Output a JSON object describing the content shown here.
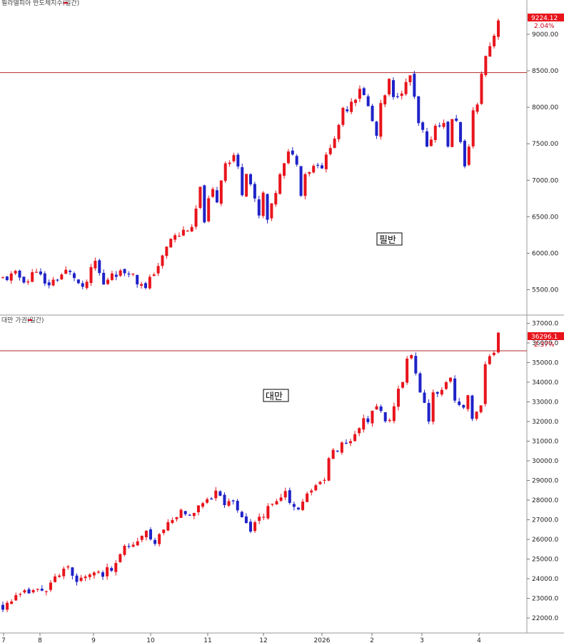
{
  "chart_data": [
    {
      "type": "candlestick",
      "legend": "필라델피아 반도체지수(일간)",
      "annotation": "필반",
      "yticks": [
        5500,
        6000,
        6500,
        7000,
        7500,
        8000,
        8500,
        9000
      ],
      "ytick_labels": [
        "5500.00",
        "6000.00",
        "6500.00",
        "7000.00",
        "7500.00",
        "8000.00",
        "8500.00",
        "9000.00"
      ],
      "ylim": [
        5220,
        9480
      ],
      "last_value": "9224.12",
      "last_change": "2.04%",
      "reference_line": 8475,
      "up_color": "#e8141c",
      "down_color": "#1f22c8",
      "close_path": [
        [
          0,
          5650
        ],
        [
          3,
          5700
        ],
        [
          6,
          5620
        ],
        [
          8,
          5800
        ],
        [
          10,
          5550
        ],
        [
          12,
          5620
        ],
        [
          15,
          5750
        ],
        [
          17,
          5680
        ],
        [
          19,
          5480
        ],
        [
          22,
          5880
        ],
        [
          24,
          5560
        ],
        [
          26,
          5750
        ],
        [
          28,
          5720
        ],
        [
          30,
          5780
        ],
        [
          32,
          5600
        ],
        [
          33,
          5620
        ],
        [
          34,
          5500
        ],
        [
          36,
          5750
        ],
        [
          38,
          5930
        ],
        [
          40,
          6200
        ],
        [
          42,
          6250
        ],
        [
          44,
          6350
        ],
        [
          45,
          6300
        ],
        [
          46,
          6600
        ],
        [
          47,
          6850
        ],
        [
          48,
          6480
        ],
        [
          49,
          6700
        ],
        [
          50,
          6850
        ],
        [
          51,
          6720
        ],
        [
          52,
          7020
        ],
        [
          53,
          7280
        ],
        [
          54,
          7250
        ],
        [
          55,
          7350
        ],
        [
          56,
          7150
        ],
        [
          57,
          6850
        ],
        [
          58,
          7150
        ],
        [
          59,
          6950
        ],
        [
          60,
          6700
        ],
        [
          61,
          6500
        ],
        [
          62,
          6800
        ],
        [
          63,
          6450
        ],
        [
          64,
          6620
        ],
        [
          65,
          6850
        ],
        [
          66,
          7050
        ],
        [
          67,
          7200
        ],
        [
          68,
          7350
        ],
        [
          69,
          7400
        ],
        [
          70,
          7200
        ],
        [
          71,
          6850
        ],
        [
          72,
          7100
        ],
        [
          73,
          7150
        ],
        [
          74,
          7200
        ],
        [
          75,
          7250
        ],
        [
          76,
          7200
        ],
        [
          77,
          7300
        ],
        [
          78,
          7500
        ],
        [
          79,
          7600
        ],
        [
          80,
          7700
        ],
        [
          81,
          7950
        ],
        [
          82,
          8000
        ],
        [
          83,
          8100
        ],
        [
          84,
          8150
        ],
        [
          85,
          8280
        ],
        [
          86,
          8150
        ],
        [
          87,
          8000
        ],
        [
          88,
          7800
        ],
        [
          89,
          7600
        ],
        [
          90,
          8000
        ],
        [
          91,
          8150
        ],
        [
          92,
          8350
        ],
        [
          93,
          8100
        ],
        [
          94,
          8200
        ],
        [
          95,
          8250
        ],
        [
          96,
          8300
        ],
        [
          97,
          8430
        ],
        [
          98,
          8100
        ],
        [
          99,
          7750
        ],
        [
          100,
          7650
        ],
        [
          101,
          7400
        ],
        [
          102,
          7600
        ],
        [
          103,
          7750
        ],
        [
          104,
          7800
        ],
        [
          105,
          7750
        ],
        [
          106,
          7500
        ],
        [
          107,
          7800
        ],
        [
          108,
          7850
        ],
        [
          109,
          7500
        ],
        [
          110,
          7150
        ],
        [
          111,
          7500
        ],
        [
          112,
          7950
        ],
        [
          113,
          8000
        ],
        [
          114,
          8480
        ],
        [
          115,
          8700
        ],
        [
          116,
          8850
        ],
        [
          117,
          9000
        ],
        [
          118,
          9224
        ]
      ]
    },
    {
      "type": "candlestick",
      "legend": "대만 가권(일간)",
      "annotation": "대만",
      "yticks": [
        22000,
        23000,
        24000,
        25000,
        26000,
        27000,
        28000,
        29000,
        30000,
        31000,
        32000,
        33000,
        34000,
        35000,
        36000,
        37000
      ],
      "ytick_labels": [
        "22000.0",
        "23000.0",
        "24000.0",
        "25000.0",
        "26000.0",
        "27000.0",
        "28000.0",
        "29000.0",
        "30000.0",
        "31000.0",
        "32000.0",
        "33000.0",
        "34000.0",
        "35000.0",
        "36000.0",
        "37000.0"
      ],
      "ylim": [
        21300,
        37280
      ],
      "last_value": "36296.1",
      "last_change": "2.37%",
      "reference_line": 35600,
      "up_color": "#e8141c",
      "down_color": "#1f22c8",
      "close_path": [
        [
          0,
          22600
        ],
        [
          3,
          23000
        ],
        [
          6,
          23300
        ],
        [
          9,
          23400
        ],
        [
          11,
          23800
        ],
        [
          13,
          24200
        ],
        [
          15,
          24450
        ],
        [
          17,
          23800
        ],
        [
          19,
          24300
        ],
        [
          21,
          24400
        ],
        [
          23,
          24100
        ],
        [
          25,
          24600
        ],
        [
          27,
          25400
        ],
        [
          29,
          25600
        ],
        [
          31,
          25800
        ],
        [
          33,
          26300
        ],
        [
          35,
          25900
        ],
        [
          37,
          26600
        ],
        [
          39,
          27000
        ],
        [
          41,
          27400
        ],
        [
          43,
          27400
        ],
        [
          45,
          27700
        ],
        [
          47,
          28100
        ],
        [
          49,
          28400
        ],
        [
          50,
          28300
        ],
        [
          51,
          27800
        ],
        [
          53,
          27900
        ],
        [
          55,
          27300
        ],
        [
          56,
          26700
        ],
        [
          57,
          26500
        ],
        [
          59,
          27100
        ],
        [
          61,
          27500
        ],
        [
          63,
          27900
        ],
        [
          65,
          28300
        ],
        [
          66,
          28000
        ],
        [
          68,
          27500
        ],
        [
          70,
          28200
        ],
        [
          72,
          28700
        ],
        [
          74,
          29000
        ],
        [
          75,
          30000
        ],
        [
          76,
          30500
        ],
        [
          78,
          30800
        ],
        [
          80,
          31200
        ],
        [
          82,
          31700
        ],
        [
          84,
          32200
        ],
        [
          86,
          32800
        ],
        [
          87,
          32500
        ],
        [
          88,
          32000
        ],
        [
          89,
          32200
        ],
        [
          90,
          32700
        ],
        [
          91,
          33500
        ],
        [
          93,
          35000
        ],
        [
          94,
          35500
        ],
        [
          95,
          34500
        ],
        [
          96,
          33700
        ],
        [
          97,
          33000
        ],
        [
          98,
          32200
        ],
        [
          99,
          33400
        ],
        [
          100,
          33200
        ],
        [
          101,
          33500
        ],
        [
          102,
          34000
        ],
        [
          103,
          34200
        ],
        [
          104,
          33300
        ],
        [
          105,
          33000
        ],
        [
          106,
          32500
        ],
        [
          107,
          33300
        ],
        [
          108,
          32200
        ],
        [
          109,
          32400
        ],
        [
          110,
          33000
        ],
        [
          111,
          34800
        ],
        [
          112,
          35300
        ],
        [
          113,
          35600
        ],
        [
          114,
          36296
        ]
      ]
    }
  ],
  "x_axis_labels": [
    "7",
    "8",
    "9",
    "10",
    "11",
    "12",
    "2026",
    "2",
    "3",
    "4"
  ]
}
